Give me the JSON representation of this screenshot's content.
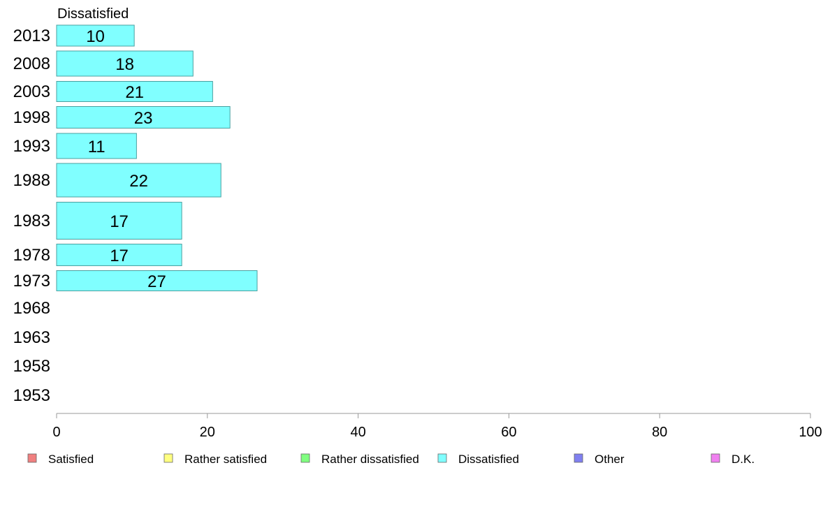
{
  "chart_data": {
    "type": "bar",
    "orientation": "horizontal",
    "subtitle": "Dissatisfied",
    "categories": [
      "2013",
      "2008",
      "2003",
      "1998",
      "1993",
      "1988",
      "1983",
      "1978",
      "1973",
      "1968",
      "1963",
      "1958",
      "1953"
    ],
    "series": [
      {
        "name": "Dissatisfied",
        "color": "#80ffff",
        "values": [
          10.3,
          18.1,
          20.7,
          23.0,
          10.6,
          21.8,
          16.6,
          16.6,
          26.6,
          null,
          null,
          null,
          null
        ],
        "labels": [
          "10",
          "18",
          "21",
          "23",
          "11",
          "22",
          "17",
          "17",
          "27",
          "",
          "",
          "",
          ""
        ]
      }
    ],
    "xlim": [
      0,
      100
    ],
    "x_ticks": [
      "0",
      "20",
      "40",
      "60",
      "80",
      "100"
    ],
    "grid": false,
    "legend": {
      "position": "bottom",
      "items": [
        {
          "label": "Satisfied",
          "color": "#f08080"
        },
        {
          "label": "Rather satisfied",
          "color": "#ffff80"
        },
        {
          "label": "Rather dissatisfied",
          "color": "#80ff80"
        },
        {
          "label": "Dissatisfied",
          "color": "#80ffff"
        },
        {
          "label": "Other",
          "color": "#8080f0"
        },
        {
          "label": "D.K.",
          "color": "#f080f0"
        }
      ]
    }
  }
}
